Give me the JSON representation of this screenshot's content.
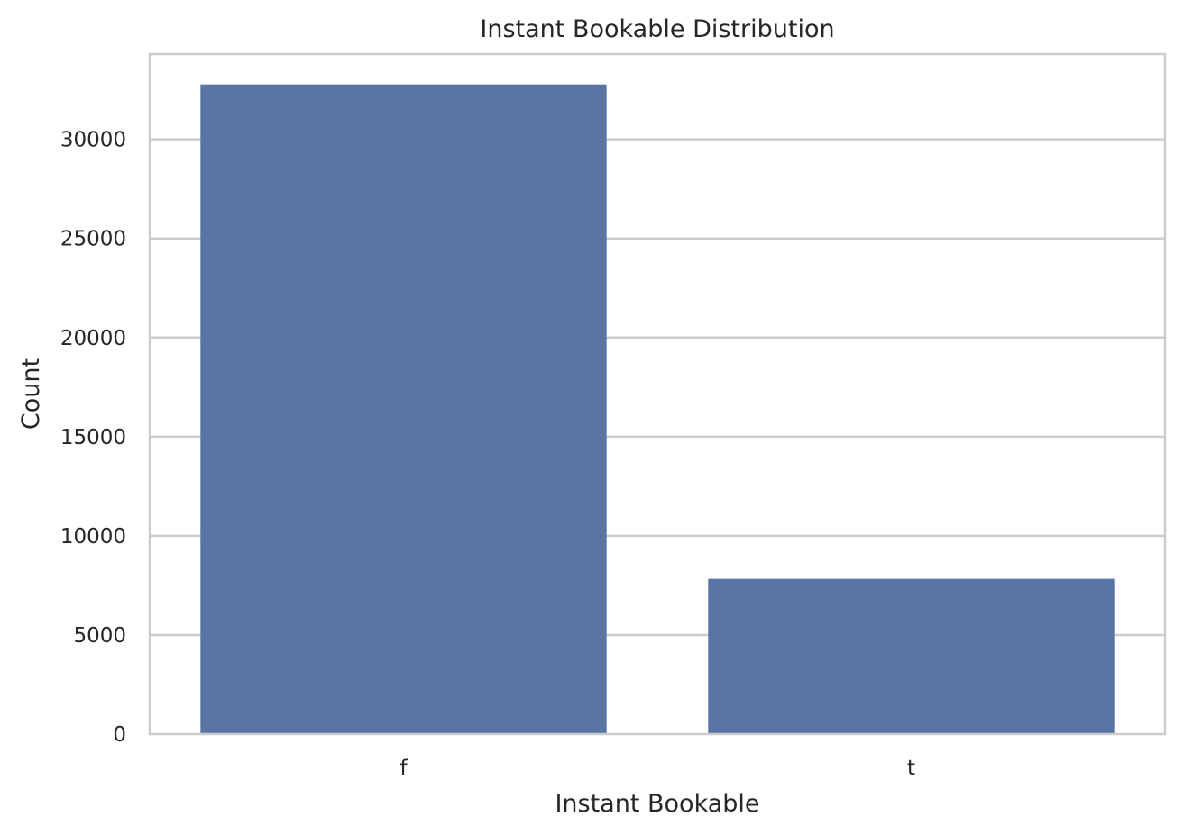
{
  "chart_data": {
    "type": "bar",
    "title": "Instant Bookable Distribution",
    "xlabel": "Instant Bookable",
    "ylabel": "Count",
    "categories": [
      "f",
      "t"
    ],
    "values": [
      32770,
      7830
    ],
    "ylim": [
      0,
      34300
    ],
    "yticks": [
      0,
      5000,
      10000,
      15000,
      20000,
      25000,
      30000
    ],
    "grid": true,
    "bar_color": "#5975a4",
    "grid_color": "#cccccc",
    "text_color": "#262626"
  }
}
